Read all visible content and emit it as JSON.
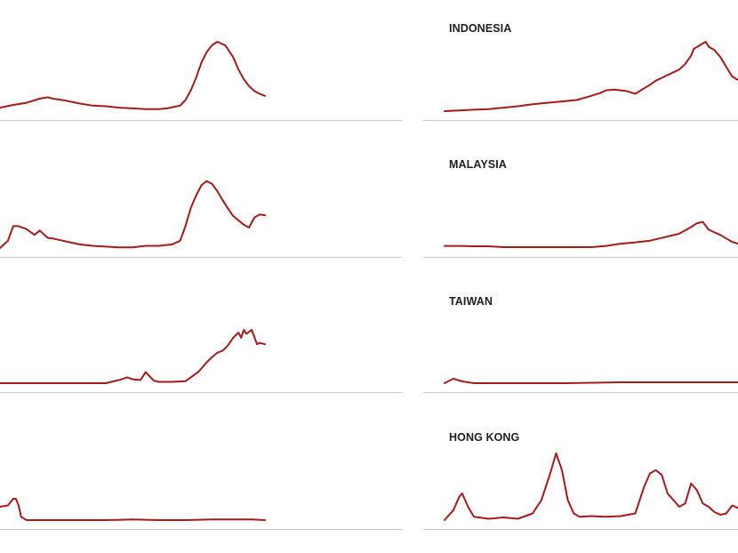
{
  "colors": {
    "line": "#a31b1b",
    "baseline": "#c7c7c7",
    "title": "#1f1f1f"
  },
  "chart_data": [
    {
      "type": "line",
      "title": "",
      "grid": false,
      "x": [
        0,
        0.05,
        0.1,
        0.15,
        0.18,
        0.2,
        0.25,
        0.3,
        0.35,
        0.4,
        0.45,
        0.5,
        0.55,
        0.6,
        0.63,
        0.68,
        0.7,
        0.72,
        0.74,
        0.76,
        0.78,
        0.8,
        0.82,
        0.85,
        0.88,
        0.9,
        0.92,
        0.94,
        0.96,
        0.98,
        1
      ],
      "values": [
        0.05,
        0.09,
        0.12,
        0.18,
        0.2,
        0.18,
        0.15,
        0.11,
        0.08,
        0.07,
        0.05,
        0.04,
        0.03,
        0.03,
        0.04,
        0.08,
        0.16,
        0.3,
        0.48,
        0.7,
        0.85,
        0.95,
        1.0,
        0.95,
        0.78,
        0.6,
        0.46,
        0.36,
        0.29,
        0.25,
        0.22
      ]
    },
    {
      "type": "line",
      "title": "INDONESIA",
      "grid": false,
      "x": [
        0,
        0.05,
        0.1,
        0.15,
        0.2,
        0.25,
        0.3,
        0.35,
        0.4,
        0.45,
        0.5,
        0.53,
        0.55,
        0.58,
        0.6,
        0.62,
        0.65,
        0.68,
        0.7,
        0.72,
        0.74,
        0.76,
        0.78,
        0.8,
        0.82,
        0.84,
        0.85,
        0.87,
        0.89,
        0.9,
        0.92,
        0.94,
        0.96,
        0.98,
        1
      ],
      "values": [
        0.0,
        0.01,
        0.02,
        0.03,
        0.05,
        0.07,
        0.1,
        0.12,
        0.14,
        0.16,
        0.22,
        0.26,
        0.3,
        0.31,
        0.3,
        0.29,
        0.25,
        0.33,
        0.38,
        0.44,
        0.48,
        0.52,
        0.56,
        0.6,
        0.68,
        0.8,
        0.9,
        0.95,
        1.0,
        0.93,
        0.88,
        0.78,
        0.64,
        0.5,
        0.45
      ]
    },
    {
      "type": "line",
      "title": "",
      "grid": false,
      "x": [
        0,
        0.03,
        0.05,
        0.07,
        0.1,
        0.13,
        0.15,
        0.18,
        0.2,
        0.25,
        0.3,
        0.35,
        0.4,
        0.45,
        0.5,
        0.55,
        0.6,
        0.65,
        0.68,
        0.7,
        0.72,
        0.74,
        0.76,
        0.78,
        0.8,
        0.82,
        0.85,
        0.88,
        0.9,
        0.92,
        0.94,
        0.96,
        0.98,
        1
      ],
      "values": [
        0.0,
        0.1,
        0.3,
        0.3,
        0.26,
        0.18,
        0.24,
        0.14,
        0.13,
        0.09,
        0.05,
        0.03,
        0.02,
        0.01,
        0.01,
        0.03,
        0.03,
        0.05,
        0.1,
        0.3,
        0.55,
        0.72,
        0.86,
        0.92,
        0.88,
        0.78,
        0.6,
        0.44,
        0.38,
        0.32,
        0.28,
        0.42,
        0.46,
        0.45
      ]
    },
    {
      "type": "line",
      "title": "MALAYSIA",
      "grid": false,
      "x": [
        0,
        0.05,
        0.1,
        0.15,
        0.2,
        0.3,
        0.4,
        0.5,
        0.55,
        0.6,
        0.65,
        0.7,
        0.75,
        0.8,
        0.84,
        0.86,
        0.88,
        0.9,
        0.92,
        0.94,
        0.96,
        0.98,
        1
      ],
      "values": [
        0.05,
        0.05,
        0.04,
        0.04,
        0.02,
        0.02,
        0.02,
        0.02,
        0.05,
        0.1,
        0.13,
        0.17,
        0.25,
        0.33,
        0.48,
        0.57,
        0.6,
        0.42,
        0.36,
        0.3,
        0.22,
        0.14,
        0.1
      ]
    },
    {
      "type": "line",
      "title": "",
      "grid": false,
      "x": [
        0,
        0.1,
        0.2,
        0.3,
        0.4,
        0.42,
        0.45,
        0.48,
        0.5,
        0.53,
        0.55,
        0.58,
        0.6,
        0.62,
        0.65,
        0.7,
        0.75,
        0.78,
        0.8,
        0.82,
        0.84,
        0.86,
        0.88,
        0.9,
        0.91,
        0.92,
        0.93,
        0.95,
        0.97,
        0.98,
        1
      ],
      "values": [
        0.0,
        0.0,
        0.0,
        0.0,
        0.0,
        0.02,
        0.05,
        0.09,
        0.06,
        0.05,
        0.17,
        0.04,
        0.02,
        0.02,
        0.02,
        0.03,
        0.18,
        0.32,
        0.4,
        0.47,
        0.5,
        0.58,
        0.7,
        0.78,
        0.7,
        0.82,
        0.76,
        0.82,
        0.6,
        0.62,
        0.6
      ]
    },
    {
      "type": "line",
      "title": "TAIWAN",
      "grid": false,
      "x": [
        0,
        0.03,
        0.06,
        0.1,
        0.2,
        0.4,
        0.6,
        0.8,
        1
      ],
      "values": [
        0.0,
        0.05,
        0.02,
        0.0,
        0.0,
        0.0,
        0.01,
        0.01,
        0.01
      ]
    },
    {
      "type": "line",
      "title": "",
      "grid": false,
      "x": [
        0,
        0.03,
        0.05,
        0.06,
        0.07,
        0.08,
        0.1,
        0.15,
        0.2,
        0.3,
        0.4,
        0.5,
        0.6,
        0.7,
        0.8,
        0.9,
        0.95,
        1
      ],
      "values": [
        0.2,
        0.22,
        0.32,
        0.32,
        0.22,
        0.05,
        0.0,
        0.0,
        0.0,
        0.0,
        0.0,
        0.01,
        0.0,
        0.0,
        0.01,
        0.01,
        0.01,
        0.0
      ]
    },
    {
      "type": "line",
      "title": "HONG KONG",
      "grid": false,
      "x": [
        0,
        0.03,
        0.05,
        0.06,
        0.08,
        0.1,
        0.15,
        0.2,
        0.25,
        0.3,
        0.33,
        0.36,
        0.38,
        0.4,
        0.42,
        0.44,
        0.46,
        0.5,
        0.55,
        0.6,
        0.65,
        0.68,
        0.7,
        0.72,
        0.74,
        0.76,
        0.8,
        0.82,
        0.84,
        0.86,
        0.88,
        0.9,
        0.92,
        0.94,
        0.96,
        0.98,
        1
      ],
      "values": [
        0.0,
        0.15,
        0.35,
        0.4,
        0.2,
        0.05,
        0.02,
        0.04,
        0.02,
        0.1,
        0.3,
        0.7,
        1.0,
        0.75,
        0.3,
        0.1,
        0.05,
        0.06,
        0.05,
        0.06,
        0.1,
        0.5,
        0.7,
        0.75,
        0.68,
        0.4,
        0.2,
        0.25,
        0.55,
        0.45,
        0.25,
        0.2,
        0.12,
        0.08,
        0.1,
        0.22,
        0.18
      ]
    }
  ]
}
